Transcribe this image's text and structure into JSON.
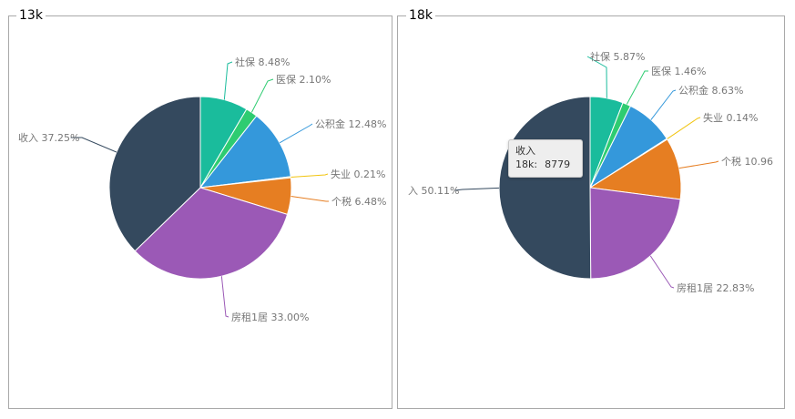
{
  "chart_data": [
    {
      "type": "pie",
      "title": "13k",
      "slices": [
        {
          "name": "社保",
          "percent": 8.48,
          "label": "社保 8.48%",
          "color": "#1abc9c"
        },
        {
          "name": "医保",
          "percent": 2.1,
          "label": "医保 2.10%",
          "color": "#2ecc71"
        },
        {
          "name": "公积金",
          "percent": 12.48,
          "label": "公积金 12.48%",
          "color": "#3498db"
        },
        {
          "name": "失业",
          "percent": 0.21,
          "label": "失业 0.21%",
          "color": "#f1c40f"
        },
        {
          "name": "个税",
          "percent": 6.48,
          "label": "个税 6.48%",
          "color": "#e67e22"
        },
        {
          "name": "房租1居",
          "percent": 33.0,
          "label": "房租1居 33.00%",
          "color": "#9b59b6"
        },
        {
          "name": "收入",
          "percent": 37.25,
          "label": "收入 37.25%",
          "color": "#34495e"
        }
      ]
    },
    {
      "type": "pie",
      "title": "18k",
      "slices": [
        {
          "name": "社保",
          "percent": 5.87,
          "label": "社保 5.87%",
          "color": "#1abc9c"
        },
        {
          "name": "医保",
          "percent": 1.46,
          "label": "医保 1.46%",
          "color": "#2ecc71"
        },
        {
          "name": "公积金",
          "percent": 8.63,
          "label": "公积金 8.63%",
          "color": "#3498db"
        },
        {
          "name": "失业",
          "percent": 0.14,
          "label": "失业 0.14%",
          "color": "#f1c40f"
        },
        {
          "name": "个税",
          "percent": 10.96,
          "label": "个税 10.96",
          "color": "#e67e22"
        },
        {
          "name": "房租1居",
          "percent": 22.83,
          "label": "房租1居 22.83%",
          "color": "#9b59b6"
        },
        {
          "name": "收入",
          "percent": 50.11,
          "label": "入 50.11%",
          "color": "#34495e"
        }
      ],
      "tooltip": {
        "title": "收入",
        "series": "18k:",
        "value": "8779"
      }
    }
  ]
}
